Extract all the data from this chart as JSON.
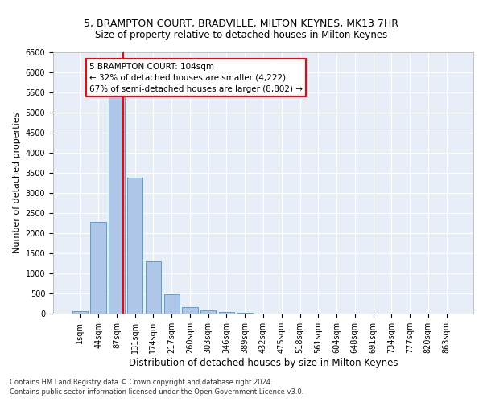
{
  "title1": "5, BRAMPTON COURT, BRADVILLE, MILTON KEYNES, MK13 7HR",
  "title2": "Size of property relative to detached houses in Milton Keynes",
  "xlabel": "Distribution of detached houses by size in Milton Keynes",
  "ylabel": "Number of detached properties",
  "footnote1": "Contains HM Land Registry data © Crown copyright and database right 2024.",
  "footnote2": "Contains public sector information licensed under the Open Government Licence v3.0.",
  "bar_labels": [
    "1sqm",
    "44sqm",
    "87sqm",
    "131sqm",
    "174sqm",
    "217sqm",
    "260sqm",
    "303sqm",
    "346sqm",
    "389sqm",
    "432sqm",
    "475sqm",
    "518sqm",
    "561sqm",
    "604sqm",
    "648sqm",
    "691sqm",
    "734sqm",
    "777sqm",
    "820sqm",
    "863sqm"
  ],
  "bar_values": [
    70,
    2280,
    5450,
    3380,
    1310,
    480,
    165,
    80,
    50,
    20,
    5,
    2,
    1,
    0,
    0,
    0,
    0,
    0,
    0,
    0,
    0
  ],
  "bar_color": "#aec6e8",
  "bar_edge_color": "#5a9fd4",
  "property_line_x": 2.35,
  "property_line_color": "red",
  "annotation_title": "5 BRAMPTON COURT: 104sqm",
  "annotation_line1": "← 32% of detached houses are smaller (4,222)",
  "annotation_line2": "67% of semi-detached houses are larger (8,802) →",
  "annotation_box_color": "red",
  "ylim": [
    0,
    6500
  ],
  "yticks": [
    0,
    500,
    1000,
    1500,
    2000,
    2500,
    3000,
    3500,
    4000,
    4500,
    5000,
    5500,
    6000,
    6500
  ],
  "bg_color": "#e8eef7",
  "grid_color": "white",
  "title1_fontsize": 9.0,
  "title2_fontsize": 8.5,
  "xlabel_fontsize": 8.5,
  "ylabel_fontsize": 8.0,
  "tick_fontsize": 7.0,
  "annot_fontsize": 7.5,
  "footnote_fontsize": 6.0
}
